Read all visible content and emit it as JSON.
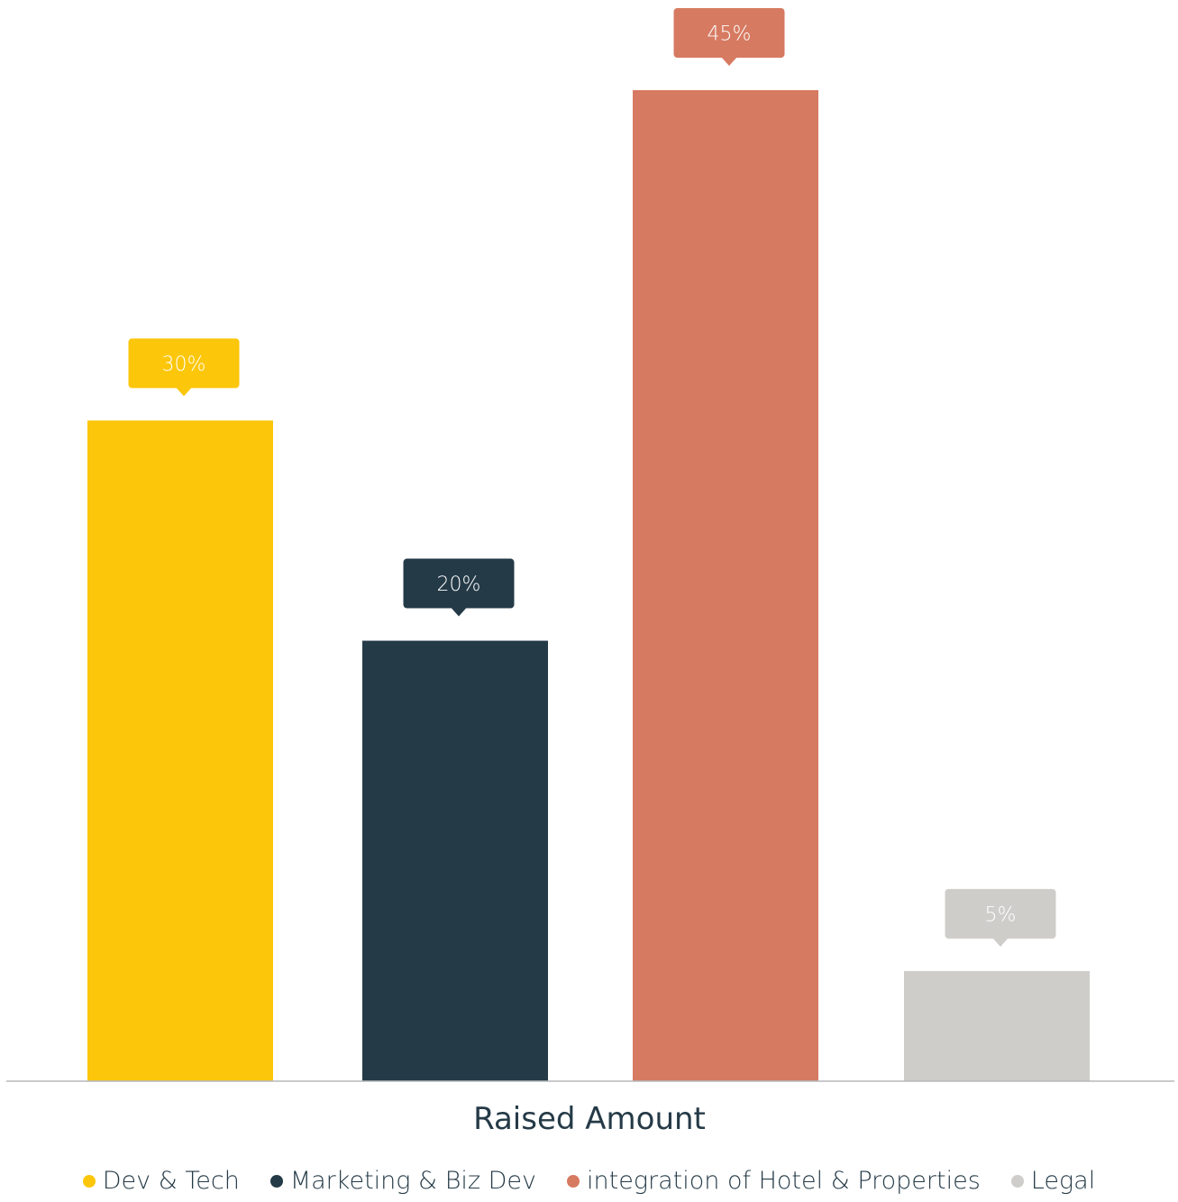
{
  "chart_data": {
    "type": "bar",
    "categories": [
      "Dev & Tech",
      "Marketing & Biz Dev",
      "integration of Hotel & Properties",
      "Legal"
    ],
    "values": [
      30,
      20,
      45,
      5
    ],
    "value_labels": [
      "30%",
      "20%",
      "45%",
      "5%"
    ],
    "colors": [
      "#fcc60a",
      "#243a47",
      "#d67a61",
      "#cfcdca"
    ],
    "xlabel": "Raised Amount",
    "ylim": [
      0,
      45
    ],
    "grid": false,
    "legend_position": "bottom"
  }
}
